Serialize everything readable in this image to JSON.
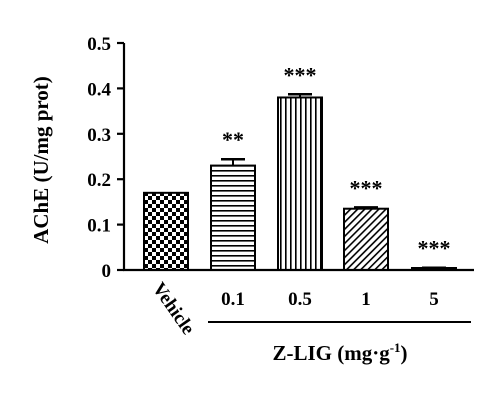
{
  "chart_data": {
    "type": "bar",
    "ylabel": "AChE (U/mg prot)",
    "ylim": [
      0,
      0.5
    ],
    "yticks": [
      "0",
      "0.1",
      "0.2",
      "0.3",
      "0.4",
      "0.5"
    ],
    "categories": [
      "Vehicle",
      "0.1",
      "0.5",
      "1",
      "5"
    ],
    "values": [
      0.17,
      0.23,
      0.38,
      0.135,
      0.004
    ],
    "errors": [
      0.0,
      0.014,
      0.007,
      0.003,
      0.001
    ],
    "significance": [
      "",
      "**",
      "***",
      "***",
      "***"
    ],
    "patterns": [
      "checker",
      "horizontal",
      "vertical",
      "diagonal",
      "solid"
    ],
    "group_label": "Z-LIG (mg·g",
    "group_label_sup": "-1",
    "group_label_close": ")",
    "grid": false
  }
}
